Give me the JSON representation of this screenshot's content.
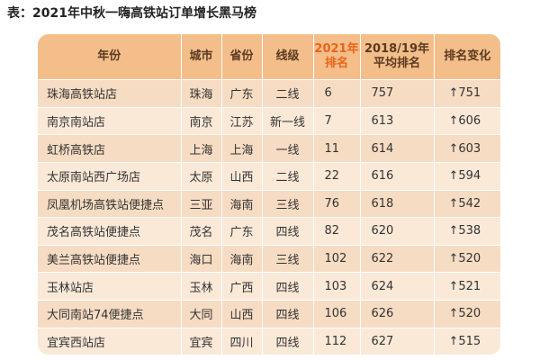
{
  "title": "表：2021年中秋一嗨高铁站订单增长黑马榜",
  "headers": {
    "col1": "年份",
    "col2": "城市",
    "col3": "省份",
    "col4": "线级",
    "col5_line1": "2021年",
    "col5_line2": "排名",
    "col6_line1": "2018/19年",
    "col6_line2": "平均排名",
    "col7": "排名变化"
  },
  "rows": [
    {
      "station": "珠海高铁站店",
      "city": "珠海",
      "province": "广东",
      "tier": "二线",
      "rank2021": "6",
      "avg": "757",
      "change": "↑751"
    },
    {
      "station": "南京南站店",
      "city": "南京",
      "province": "江苏",
      "tier": "新一线",
      "rank2021": "7",
      "avg": "613",
      "change": "↑606"
    },
    {
      "station": "虹桥高铁店",
      "city": "上海",
      "province": "上海",
      "tier": "一线",
      "rank2021": "11",
      "avg": "614",
      "change": "↑603"
    },
    {
      "station": "太原南站西广场店",
      "city": "太原",
      "province": "山西",
      "tier": "二线",
      "rank2021": "22",
      "avg": "616",
      "change": "↑594"
    },
    {
      "station": "凤凰机场高铁站便捷点",
      "city": "三亚",
      "province": "海南",
      "tier": "三线",
      "rank2021": "76",
      "avg": "618",
      "change": "↑542"
    },
    {
      "station": "茂名高铁站便捷点",
      "city": "茂名",
      "province": "广东",
      "tier": "四线",
      "rank2021": "82",
      "avg": "620",
      "change": "↑538"
    },
    {
      "station": "美兰高铁站便捷点",
      "city": "海口",
      "province": "海南",
      "tier": "三线",
      "rank2021": "102",
      "avg": "622",
      "change": "↑520"
    },
    {
      "station": "玉林站店",
      "city": "玉林",
      "province": "广西",
      "tier": "四线",
      "rank2021": "103",
      "avg": "624",
      "change": "↑521"
    },
    {
      "station": "大同南站74便捷点",
      "city": "大同",
      "province": "山西",
      "tier": "四线",
      "rank2021": "106",
      "avg": "626",
      "change": "↑520"
    },
    {
      "station": "宜宾西站店",
      "city": "宜宾",
      "province": "四川",
      "tier": "四线",
      "rank2021": "112",
      "avg": "627",
      "change": "↑515"
    }
  ]
}
